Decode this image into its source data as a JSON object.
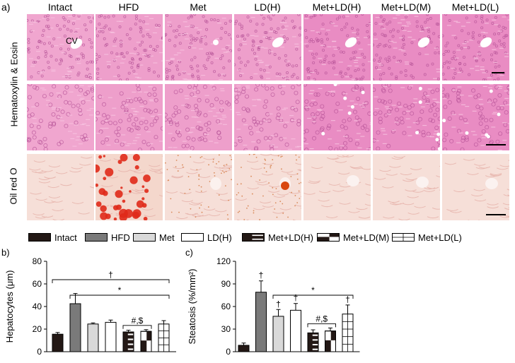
{
  "panel_a": {
    "letter": "a)",
    "columns": [
      "Intact",
      "HFD",
      "Met",
      "LD(H)",
      "Met+LD(H)",
      "Met+LD(M)",
      "Met+LD(L)"
    ],
    "row_labels": [
      "Hematoxylin & Eosin",
      "Oil red O"
    ],
    "cv_label": "CV"
  },
  "legend": {
    "items": [
      {
        "label": "Intact",
        "pattern": "solid-dark"
      },
      {
        "label": "HFD",
        "pattern": "solid-gray"
      },
      {
        "label": "Met",
        "pattern": "solid-light"
      },
      {
        "label": "LD(H)",
        "pattern": "white"
      },
      {
        "label": "Met+LD(H)",
        "pattern": "dark-white-stripes"
      },
      {
        "label": "Met+LD(M)",
        "pattern": "dark-bottom"
      },
      {
        "label": "Met+LD(L)",
        "pattern": "white-stripes"
      }
    ],
    "colors": {
      "dark": "#231815",
      "gray": "#7a7a7a",
      "light": "#d9d9d9",
      "white": "#ffffff"
    }
  },
  "chart_data": [
    {
      "type": "bar",
      "panel": "b)",
      "ylabel": "Hepatocytes (μm)",
      "ylim": [
        0,
        80
      ],
      "yticks": [
        "0",
        "20",
        "40",
        "60",
        "80"
      ],
      "categories": [
        "Intact",
        "HFD",
        "Met",
        "LD(H)",
        "Met+LD(H)",
        "Met+LD(M)",
        "Met+LD(L)"
      ],
      "values": [
        15.5,
        42.5,
        24.5,
        26,
        17.5,
        18,
        24.5
      ],
      "errors": [
        1.5,
        9,
        1,
        2,
        1.5,
        1.5,
        3
      ],
      "annotations": [
        {
          "text": "†",
          "from": "Intact",
          "to": "Met+LD(L)"
        },
        {
          "text": "*",
          "from": "HFD",
          "to": "Met+LD(L)"
        },
        {
          "text": "#,$",
          "from": "Met+LD(H)",
          "to": "Met+LD(M)"
        }
      ]
    },
    {
      "type": "bar",
      "panel": "c)",
      "ylabel": "Steatosis (%/mm²)",
      "ylim": [
        0,
        120
      ],
      "yticks": [
        "0",
        "30",
        "60",
        "90",
        "120"
      ],
      "categories": [
        "Intact",
        "HFD",
        "Met",
        "LD(H)",
        "Met+LD(H)",
        "Met+LD(M)",
        "Met+LD(L)"
      ],
      "values": [
        8.5,
        79,
        47,
        55,
        25,
        27.5,
        50
      ],
      "errors": [
        3,
        15,
        9,
        9,
        4,
        4,
        12
      ],
      "bar_marks": [
        "",
        "†",
        "†",
        "†",
        "",
        "",
        "†"
      ],
      "annotations": [
        {
          "text": "*",
          "from": "Met",
          "to": "Met+LD(L)"
        },
        {
          "text": "#,$",
          "from": "Met+LD(H)",
          "to": "Met+LD(M)"
        }
      ]
    }
  ]
}
